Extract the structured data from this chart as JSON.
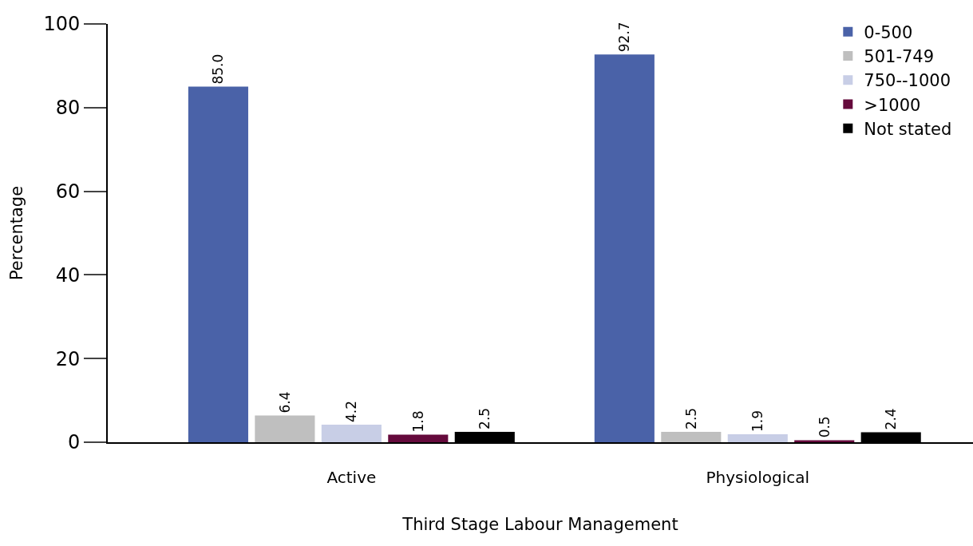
{
  "chart_data": {
    "type": "bar",
    "xlabel": "Third Stage Labour Management",
    "ylabel": "Percentage",
    "categories": [
      "Active",
      "Physiological"
    ],
    "series": [
      {
        "name": "0-500",
        "color": "#4a62a8",
        "values": [
          85.0,
          92.7
        ]
      },
      {
        "name": "501-749",
        "color": "#bfbfbf",
        "values": [
          6.4,
          2.5
        ]
      },
      {
        "name": "750--1000",
        "color": "#c8cee6",
        "values": [
          4.2,
          1.9
        ]
      },
      {
        "name": ">1000",
        "color": "#650a3c",
        "values": [
          1.8,
          0.5
        ]
      },
      {
        "name": "Not stated",
        "color": "#000000",
        "values": [
          2.5,
          2.4
        ]
      }
    ],
    "value_labels": [
      [
        "85.0",
        "92.7"
      ],
      [
        "6.4",
        "2.5"
      ],
      [
        "4.2",
        "1.9"
      ],
      [
        "1.8",
        "0.5"
      ],
      [
        "2.5",
        "2.4"
      ]
    ],
    "ylim": [
      0,
      100
    ],
    "yticks": [
      0,
      20,
      40,
      60,
      80,
      100
    ],
    "grid": false,
    "legend": "top right"
  }
}
